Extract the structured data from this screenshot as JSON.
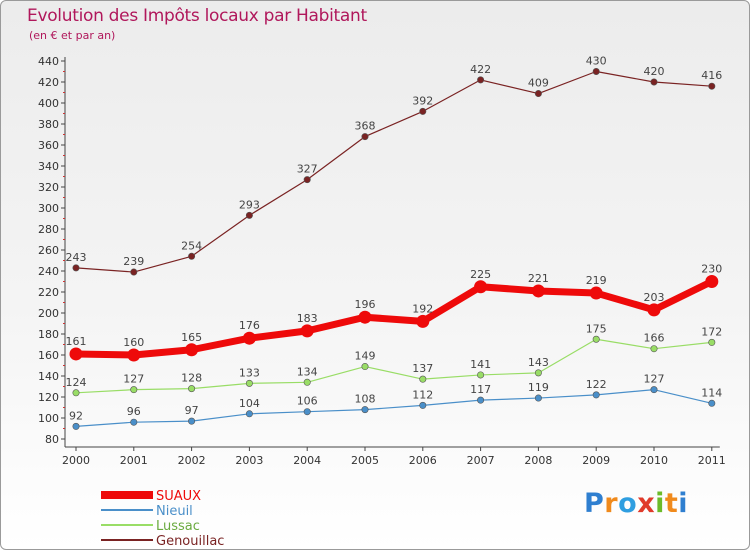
{
  "chart_data": {
    "type": "line",
    "title": "Evolution des Impôts locaux par Habitant",
    "subtitle": "(en € et par an)",
    "xlabel": "",
    "ylabel": "",
    "categories": [
      "2000",
      "2001",
      "2002",
      "2003",
      "2004",
      "2005",
      "2006",
      "2007",
      "2008",
      "2009",
      "2010",
      "2011"
    ],
    "ylim": [
      80,
      440
    ],
    "yticks": [
      80,
      100,
      120,
      140,
      160,
      180,
      200,
      220,
      240,
      260,
      280,
      300,
      320,
      340,
      360,
      380,
      400,
      420,
      440
    ],
    "grid": false,
    "legend_position": "bottom-left",
    "series": [
      {
        "name": "SUAUX",
        "color": "#ee0a0a",
        "values": [
          161,
          160,
          165,
          176,
          183,
          196,
          192,
          225,
          221,
          219,
          203,
          230
        ]
      },
      {
        "name": "Nieuil",
        "color": "#4a8fc9",
        "values": [
          92,
          96,
          97,
          104,
          106,
          108,
          112,
          117,
          119,
          122,
          127,
          114
        ]
      },
      {
        "name": "Lussac",
        "color": "#99dd66",
        "values": [
          124,
          127,
          128,
          133,
          134,
          149,
          137,
          141,
          143,
          175,
          166,
          172
        ]
      },
      {
        "name": "Genouillac",
        "color": "#7a2323",
        "values": [
          243,
          239,
          254,
          293,
          327,
          368,
          392,
          422,
          409,
          430,
          420,
          416
        ]
      }
    ]
  },
  "logo": {
    "letters": [
      "P",
      "r",
      "o",
      "x",
      "i",
      "t",
      "i"
    ],
    "colors": [
      "#2f7fd0",
      "#f08a1c",
      "#2f9ee0",
      "#e03b2b",
      "#6cbb2a",
      "#f08a1c",
      "#2f7fd0"
    ]
  }
}
